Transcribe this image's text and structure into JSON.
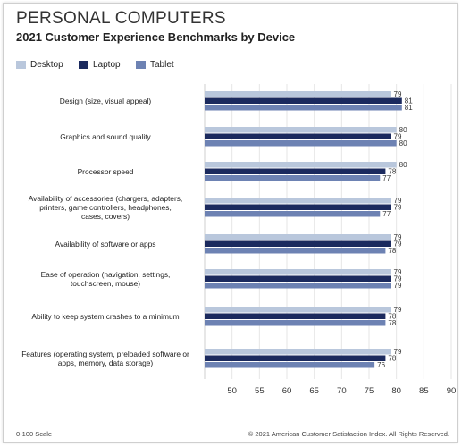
{
  "chart_data": {
    "type": "bar",
    "orientation": "horizontal",
    "title": "PERSONAL COMPUTERS",
    "subtitle": "2021 Customer Experience Benchmarks by Device",
    "categories": [
      "Design (size, visual appeal)",
      "Graphics and sound quality",
      "Processor speed",
      "Availability of accessories (chargers, adapters, printers, game controllers, headphones, cases, covers)",
      "Availability of software or apps",
      "Ease of operation (navigation, settings, touchscreen, mouse)",
      "Ability to keep system crashes to a minimum",
      "Features (operating system, preloaded software or apps, memory, data storage)"
    ],
    "category_lines": [
      [
        "Design (size, visual appeal)"
      ],
      [
        "Graphics and sound quality"
      ],
      [
        "Processor speed"
      ],
      [
        "Availability of accessories (chargers, adapters,",
        "printers, game controllers, headphones,",
        "cases, covers)"
      ],
      [
        "Availability of software or apps"
      ],
      [
        "Ease of operation (navigation, settings,",
        "touchscreen, mouse)"
      ],
      [
        "Ability to keep system crashes to a minimum"
      ],
      [
        "Features (operating system, preloaded software or",
        "apps, memory, data storage)"
      ]
    ],
    "series": [
      {
        "name": "Desktop",
        "color": "#b9c7dc",
        "values": [
          79,
          80,
          80,
          79,
          79,
          79,
          79,
          79
        ]
      },
      {
        "name": "Laptop",
        "color": "#1b2a5e",
        "values": [
          81,
          79,
          78,
          79,
          79,
          79,
          78,
          78
        ]
      },
      {
        "name": "Tablet",
        "color": "#6d82b3",
        "values": [
          81,
          80,
          77,
          77,
          78,
          79,
          78,
          76
        ]
      }
    ],
    "xlim": [
      45,
      90
    ],
    "xticks": [
      50,
      55,
      60,
      65,
      70,
      75,
      80,
      85,
      90
    ],
    "grid": true,
    "legend_position": "top-left"
  },
  "footer": {
    "scale_note": "0-100 Scale",
    "copyright": "© 2021 American Customer Satisfaction Index. All Rights Reserved."
  }
}
